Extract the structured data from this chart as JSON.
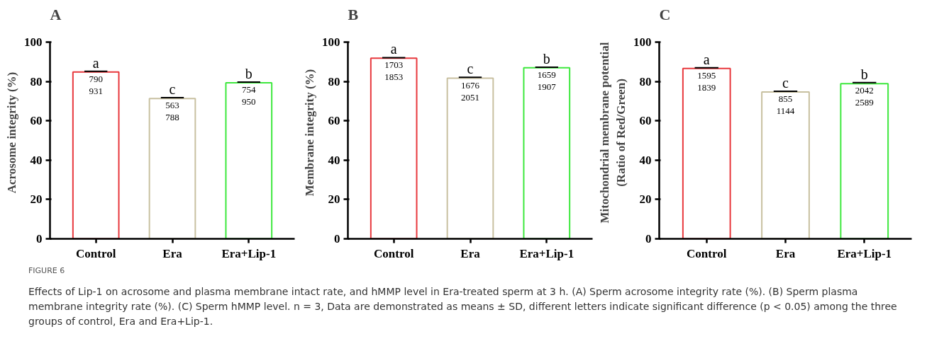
{
  "chart_data": [
    {
      "type": "bar",
      "title": "A",
      "ylabel": "Acrosome integrity (%)",
      "categories": [
        "Control",
        "Era",
        "Era+Lip-1"
      ],
      "series": [
        {
          "colors": [
            "#e8383d",
            "#c8c0a0",
            "#3ee83e"
          ],
          "values": [
            84.9,
            71.4,
            79.4
          ],
          "errors": [
            0.3,
            0.4,
            0.3
          ],
          "value_labels": [
            "a",
            "c",
            "b"
          ]
        }
      ],
      "ylim": [
        0,
        100
      ],
      "yticks": [
        0,
        20,
        40,
        60,
        80,
        100
      ],
      "grid": false,
      "annotations": [
        "790",
        "931",
        "563",
        "788",
        "754",
        "950",
        "FIGURE 6",
        "Effects of Lip-1 on acrosome and plasma membrane intact rate, and hMMP level in Era-treated sperm at 3 h. (A) Sperm acrosome integrity rate (%). (B) Sperm plasma membrane integrity rate (%). (C) Sperm hMMP level. n = 3, Data are demonstrated as means ± SD, different letters indicate significant difference (p < 0.05) among the three groups of control, Era and Era+Lip-1."
      ]
    },
    {
      "type": "bar",
      "title": "B",
      "ylabel": "Membrane integrity (%)",
      "categories": [
        "Control",
        "Era",
        "Era+Lip-1"
      ],
      "series": [
        {
          "colors": [
            "#e8383d",
            "#c8c0a0",
            "#3ee83e"
          ],
          "values": [
            91.9,
            81.7,
            87.0
          ],
          "errors": [
            0.3,
            0.5,
            0.3
          ],
          "value_labels": [
            "a",
            "c",
            "b"
          ]
        }
      ],
      "ylim": [
        0,
        100
      ],
      "yticks": [
        0,
        20,
        40,
        60,
        80,
        100
      ],
      "grid": false,
      "annotations": [
        "1703",
        "1853",
        "1676",
        "2051",
        "1659",
        "1907"
      ]
    },
    {
      "type": "bar",
      "title": "C",
      "ylabel": "Mitochondrial membrane potential\n(Ratio of Red/Green)",
      "categories": [
        "Control",
        "Era",
        "Era+Lip-1"
      ],
      "series": [
        {
          "colors": [
            "#e8383d",
            "#c8c0a0",
            "#3ee83e"
          ],
          "values": [
            86.7,
            74.7,
            78.9
          ],
          "errors": [
            0.3,
            0.4,
            0.6
          ],
          "value_labels": [
            "a",
            "c",
            "b"
          ]
        }
      ],
      "ylim": [
        0,
        100
      ],
      "yticks": [
        0,
        20,
        40,
        60,
        80,
        100
      ],
      "grid": false,
      "annotations": [
        "1595",
        "1839",
        "855",
        "1144",
        "2042",
        "2589"
      ]
    }
  ]
}
